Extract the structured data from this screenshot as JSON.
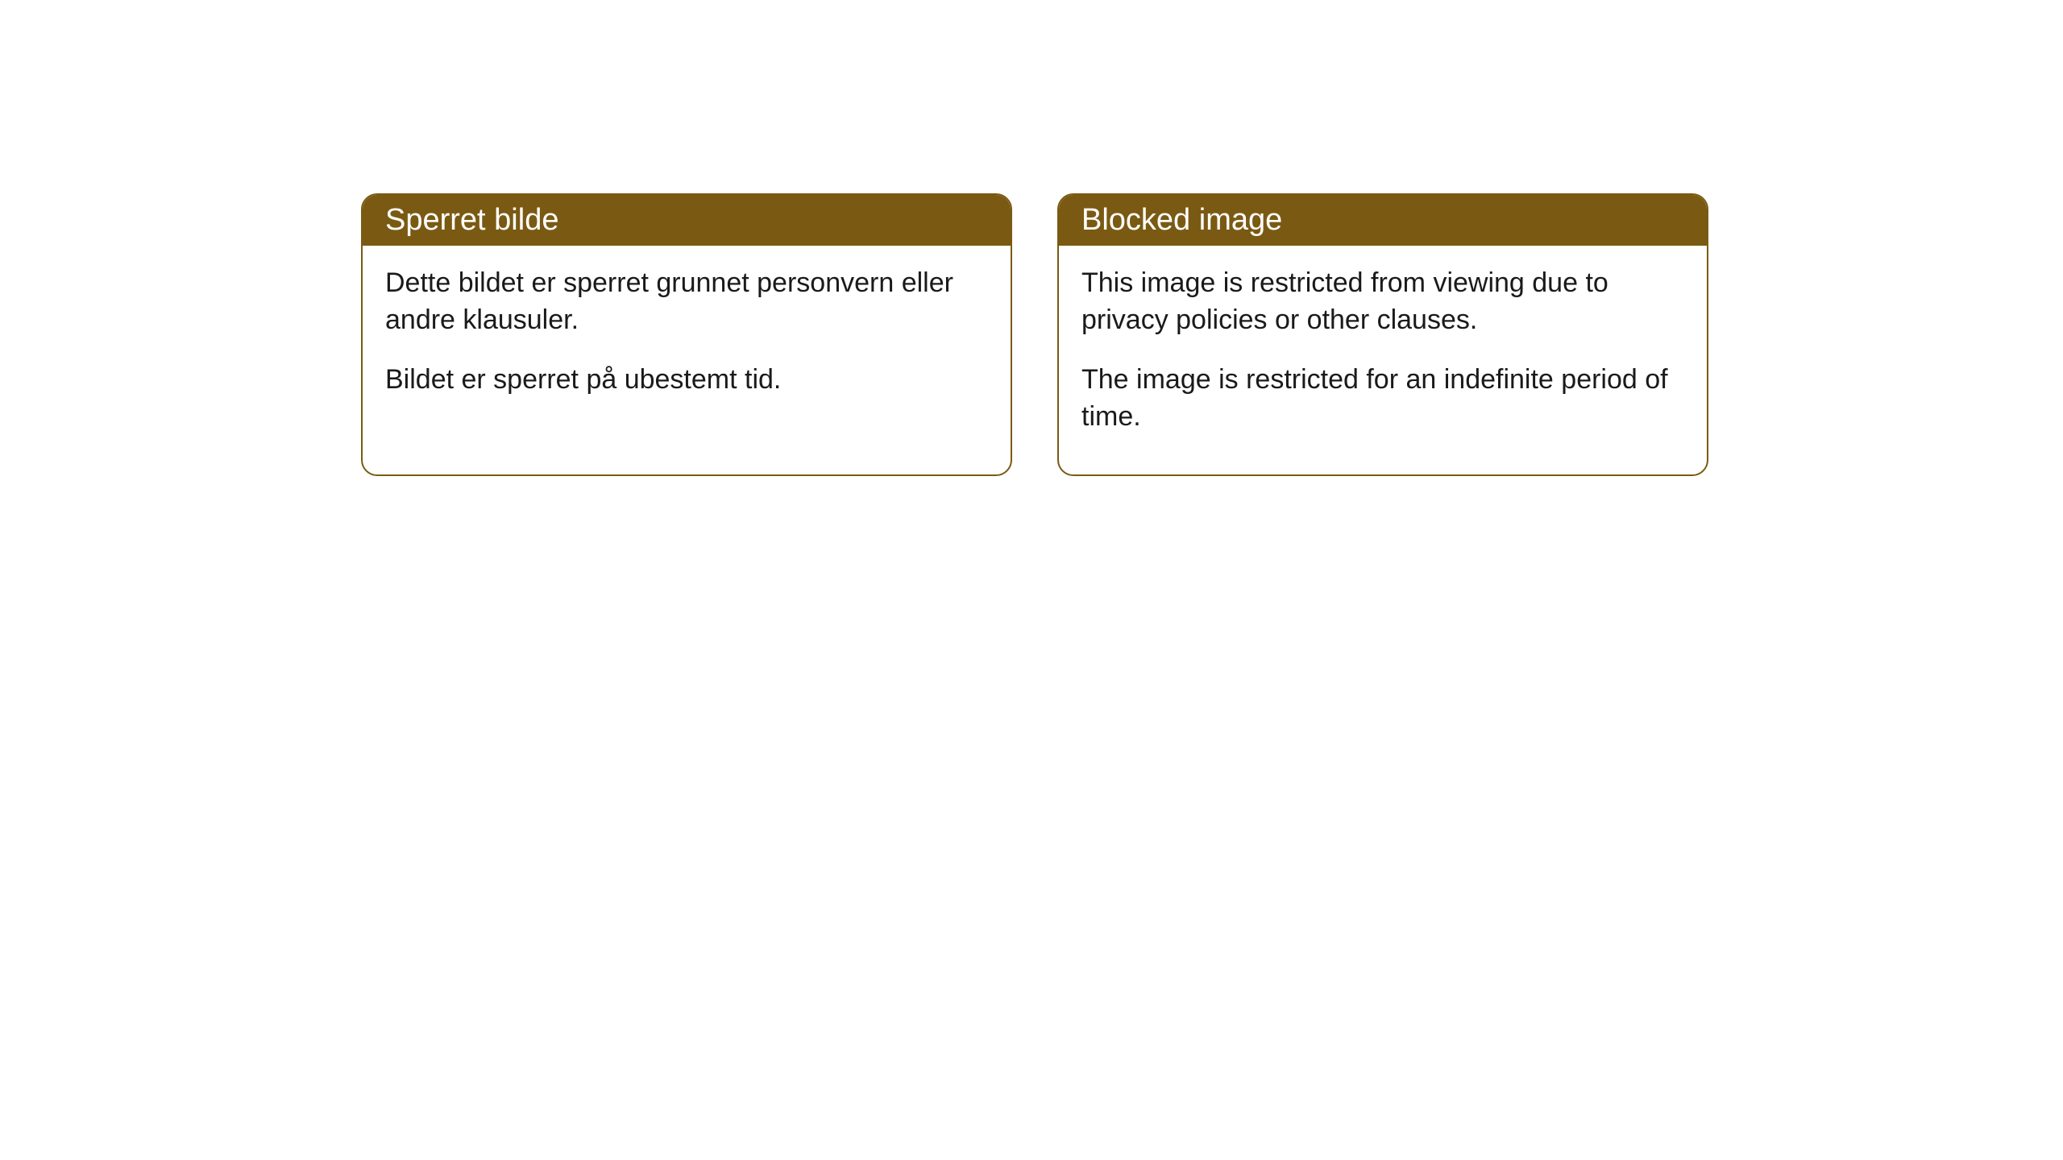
{
  "cards": [
    {
      "title": "Sperret bilde",
      "paragraph1": "Dette bildet er sperret grunnet personvern eller andre klausuler.",
      "paragraph2": "Bildet er sperret på ubestemt tid."
    },
    {
      "title": "Blocked image",
      "paragraph1": "This image is restricted from viewing due to privacy policies or other clauses.",
      "paragraph2": "The image is restricted for an indefinite period of time."
    }
  ],
  "style": {
    "header_bg_color": "#7a5a13",
    "header_text_color": "#ffffff",
    "border_color": "#7a5a13",
    "body_bg_color": "#ffffff",
    "body_text_color": "#1a1a1a",
    "border_radius": 20,
    "title_fontsize": 38,
    "body_fontsize": 34
  }
}
